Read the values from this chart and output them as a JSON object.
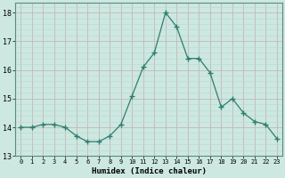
{
  "x": [
    0,
    1,
    2,
    3,
    4,
    5,
    6,
    7,
    8,
    9,
    10,
    11,
    12,
    13,
    14,
    15,
    16,
    17,
    18,
    19,
    20,
    21,
    22,
    23
  ],
  "y": [
    14.0,
    14.0,
    14.1,
    14.1,
    14.0,
    13.7,
    13.5,
    13.5,
    13.7,
    14.1,
    15.1,
    16.1,
    16.6,
    18.0,
    17.5,
    16.4,
    16.4,
    15.9,
    14.7,
    15.0,
    14.5,
    14.2,
    14.1,
    13.6
  ],
  "line_color": "#2e7d6e",
  "marker": "+",
  "marker_size": 4,
  "bg_color": "#cce8e0",
  "grid_minor_color": "#b8d8d0",
  "grid_major_color": "#c4b8b8",
  "xlabel": "Humidex (Indice chaleur)",
  "xlim": [
    -0.5,
    23.5
  ],
  "ylim": [
    13.0,
    18.35
  ],
  "yticks": [
    13,
    14,
    15,
    16,
    17,
    18
  ],
  "xticks": [
    0,
    1,
    2,
    3,
    4,
    5,
    6,
    7,
    8,
    9,
    10,
    11,
    12,
    13,
    14,
    15,
    16,
    17,
    18,
    19,
    20,
    21,
    22,
    23
  ]
}
